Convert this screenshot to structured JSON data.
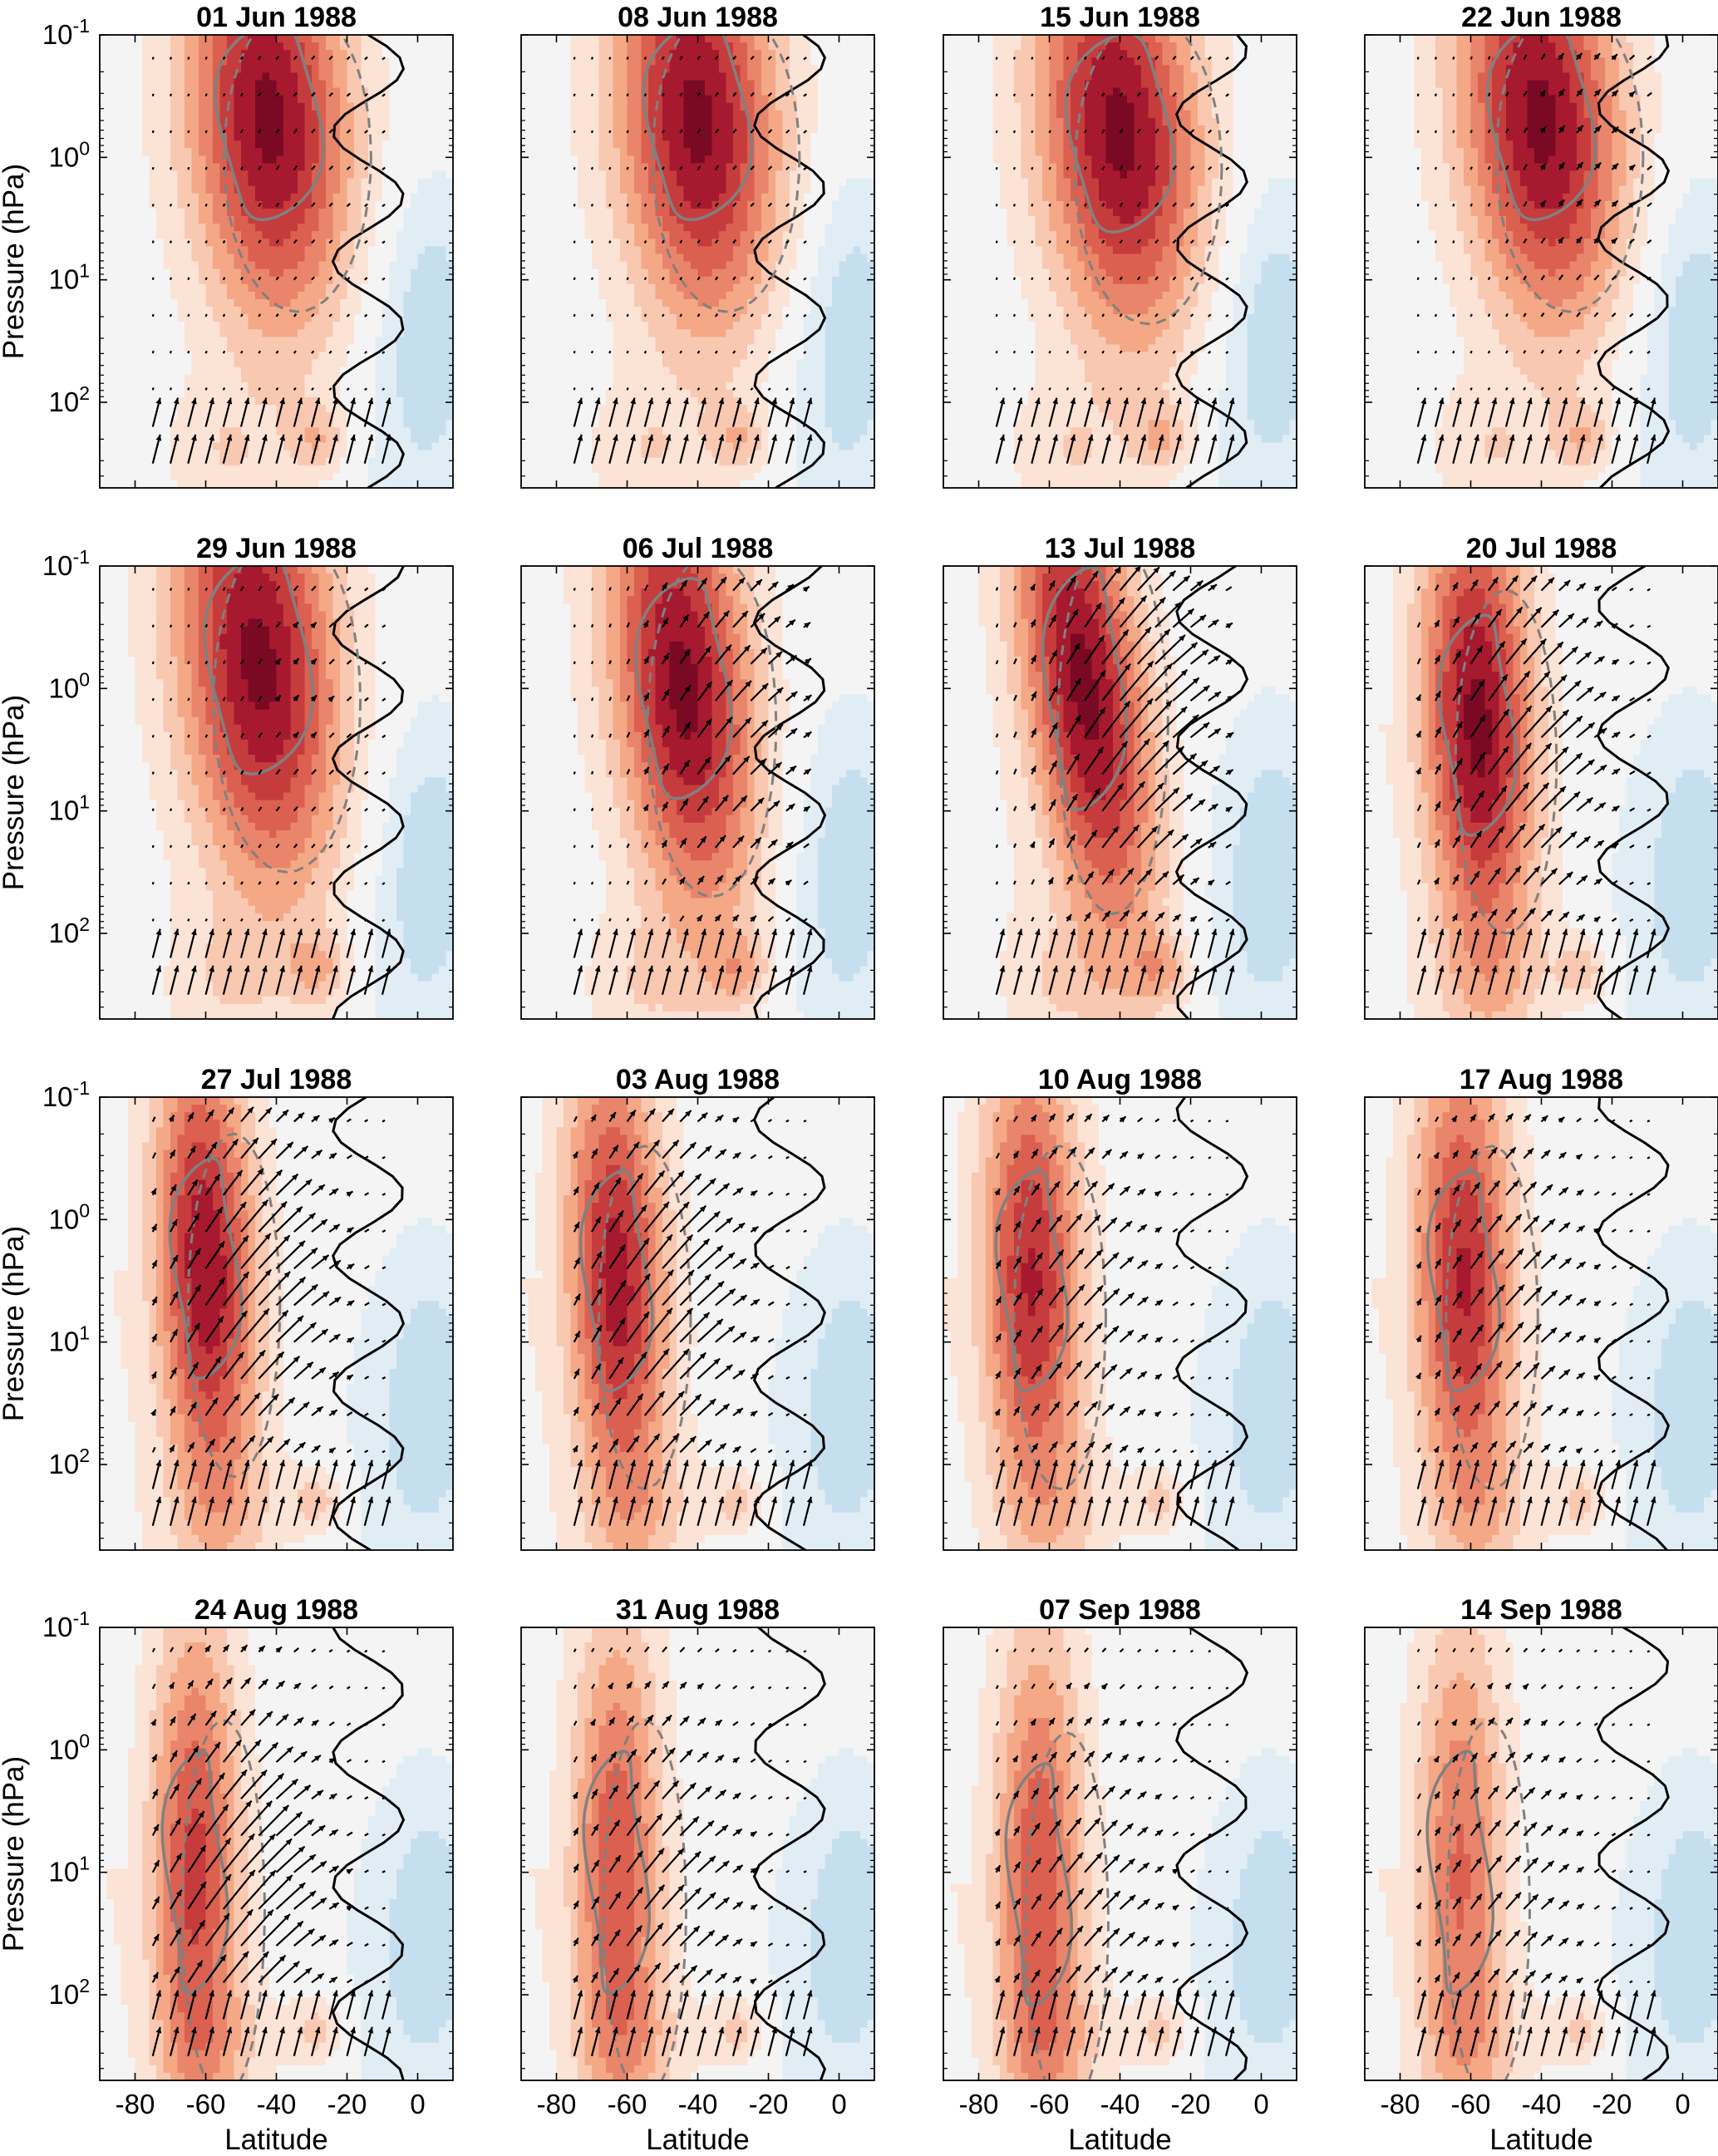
{
  "chart_data": {
    "type": "heatmap",
    "description_note": "",
    "xlabel": "Latitude",
    "ylabel": "Pressure (hPa)",
    "xlim": [
      -90,
      10
    ],
    "xticks": [
      -80,
      -60,
      -40,
      -20,
      0
    ],
    "xtick_labels": [
      "-80",
      "-60",
      "-40",
      "-20",
      "0"
    ],
    "ylim_hPa": [
      0.1,
      500
    ],
    "y_scale": "log",
    "y_reversed": true,
    "yticks": [
      0.1,
      1,
      10,
      100
    ],
    "ytick_labels": [
      [
        "10",
        "-1"
      ],
      [
        "10",
        "0"
      ],
      [
        "10",
        "1"
      ],
      [
        "10",
        "2"
      ]
    ],
    "colormap": {
      "negative": "#2c7fb8",
      "zero": "#f4f4f4",
      "positive": "#67001f"
    },
    "contour_colors": {
      "solid_black": "#000000",
      "gray": "#808080"
    },
    "grid": false,
    "panels": [
      {
        "title": "01 Jun 1988",
        "core_lat": -42,
        "core_logp": -0.3,
        "strength": 1.0,
        "lat_width": 16,
        "logp_width": 0.9,
        "arrows": 0.05,
        "tilt": 0.2
      },
      {
        "title": "08 Jun 1988",
        "core_lat": -40,
        "core_logp": -0.3,
        "strength": 1.0,
        "lat_width": 16,
        "logp_width": 0.9,
        "arrows": 0.05,
        "tilt": 0.2
      },
      {
        "title": "15 Jun 1988",
        "core_lat": -40,
        "core_logp": -0.2,
        "strength": 1.0,
        "lat_width": 16,
        "logp_width": 0.9,
        "arrows": 0.05,
        "tilt": 0.25
      },
      {
        "title": "22 Jun 1988",
        "core_lat": -40,
        "core_logp": -0.3,
        "strength": 1.0,
        "lat_width": 16,
        "logp_width": 0.9,
        "arrows": 0.15,
        "tilt": 0.25
      },
      {
        "title": "29 Jun 1988",
        "core_lat": -45,
        "core_logp": -0.2,
        "strength": 1.0,
        "lat_width": 16,
        "logp_width": 1.0,
        "arrows": 0.1,
        "tilt": 0.25
      },
      {
        "title": "06 Jul 1988",
        "core_lat": -44,
        "core_logp": 0.0,
        "strength": 1.0,
        "lat_width": 14,
        "logp_width": 1.0,
        "arrows": 0.5,
        "tilt": 0.3
      },
      {
        "title": "13 Jul 1988",
        "core_lat": -50,
        "core_logp": 0.0,
        "strength": 1.0,
        "lat_width": 12,
        "logp_width": 1.1,
        "arrows": 1.0,
        "tilt": 0.4
      },
      {
        "title": "20 Jul 1988",
        "core_lat": -58,
        "core_logp": 0.3,
        "strength": 1.0,
        "lat_width": 11,
        "logp_width": 1.0,
        "arrows": 0.8,
        "tilt": 0.1
      },
      {
        "title": "27 Jul 1988",
        "core_lat": -60,
        "core_logp": 0.4,
        "strength": 0.95,
        "lat_width": 10,
        "logp_width": 1.0,
        "arrows": 0.9,
        "tilt": 0.1
      },
      {
        "title": "03 Aug 1988",
        "core_lat": -63,
        "core_logp": 0.5,
        "strength": 0.9,
        "lat_width": 10,
        "logp_width": 1.0,
        "arrows": 0.9,
        "tilt": 0.1
      },
      {
        "title": "10 Aug 1988",
        "core_lat": -65,
        "core_logp": 0.5,
        "strength": 0.85,
        "lat_width": 10,
        "logp_width": 1.0,
        "arrows": 0.5,
        "tilt": 0.05
      },
      {
        "title": "17 Aug 1988",
        "core_lat": -62,
        "core_logp": 0.5,
        "strength": 0.85,
        "lat_width": 10,
        "logp_width": 1.0,
        "arrows": 0.5,
        "tilt": 0.05
      },
      {
        "title": "24 Aug 1988",
        "core_lat": -63,
        "core_logp": 1.0,
        "strength": 0.75,
        "lat_width": 9,
        "logp_width": 1.1,
        "arrows": 1.0,
        "tilt": 0.0
      },
      {
        "title": "31 Aug 1988",
        "core_lat": -63,
        "core_logp": 1.0,
        "strength": 0.7,
        "lat_width": 9,
        "logp_width": 1.1,
        "arrows": 0.6,
        "tilt": 0.0
      },
      {
        "title": "07 Sep 1988",
        "core_lat": -63,
        "core_logp": 1.1,
        "strength": 0.7,
        "lat_width": 9,
        "logp_width": 1.1,
        "arrows": 0.5,
        "tilt": 0.0
      },
      {
        "title": "14 Sep 1988",
        "core_lat": -63,
        "core_logp": 1.0,
        "strength": 0.6,
        "lat_width": 9,
        "logp_width": 1.1,
        "arrows": 0.4,
        "tilt": 0.0
      }
    ]
  }
}
